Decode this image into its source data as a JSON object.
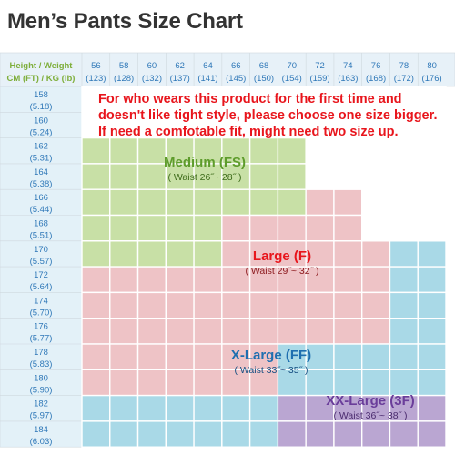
{
  "title": "Men’s Pants Size Chart",
  "header": {
    "line1": "Height / Weight",
    "line2": "CM (FT) / KG (lb)"
  },
  "weights": [
    {
      "kg": "56",
      "lb": "(123)"
    },
    {
      "kg": "58",
      "lb": "(128)"
    },
    {
      "kg": "60",
      "lb": "(132)"
    },
    {
      "kg": "62",
      "lb": "(137)"
    },
    {
      "kg": "64",
      "lb": "(141)"
    },
    {
      "kg": "66",
      "lb": "(145)"
    },
    {
      "kg": "68",
      "lb": "(150)"
    },
    {
      "kg": "70",
      "lb": "(154)"
    },
    {
      "kg": "72",
      "lb": "(159)"
    },
    {
      "kg": "74",
      "lb": "(163)"
    },
    {
      "kg": "76",
      "lb": "(168)"
    },
    {
      "kg": "78",
      "lb": "(172)"
    },
    {
      "kg": "80",
      "lb": "(176)"
    }
  ],
  "heights": [
    {
      "cm": "158",
      "ft": "(5.18)"
    },
    {
      "cm": "160",
      "ft": "(5.24)"
    },
    {
      "cm": "162",
      "ft": "(5.31)"
    },
    {
      "cm": "164",
      "ft": "(5.38)"
    },
    {
      "cm": "166",
      "ft": "(5.44)"
    },
    {
      "cm": "168",
      "ft": "(5.51)"
    },
    {
      "cm": "170",
      "ft": "(5.57)"
    },
    {
      "cm": "172",
      "ft": "(5.64)"
    },
    {
      "cm": "174",
      "ft": "(5.70)"
    },
    {
      "cm": "176",
      "ft": "(5.77)"
    },
    {
      "cm": "178",
      "ft": "(5.83)"
    },
    {
      "cm": "180",
      "ft": "(5.90)"
    },
    {
      "cm": "182",
      "ft": "(5.97)"
    },
    {
      "cm": "184",
      "ft": "(6.03)"
    }
  ],
  "grid": [
    "WWWWWWWWWWWWW",
    "WWWWWWWWWWWWW",
    "MMMMMMMMWWWWW",
    "MMMMMMMMWWWWW",
    "MMMMMMMMLLWWW",
    "MMMMMLLLLLWWW",
    "MMMMMLLLLLLXX",
    "LLLLLLLLLLLXX",
    "LLLLLLLLLLLXX",
    "LLLLLLLLLLLXX",
    "LLLLLLLXXXXXX",
    "LLLLLLLXXXXXX",
    "XXXXXXXPPPPPP",
    "XXXXXXXPPPPPP"
  ],
  "note": {
    "line1": "For who wears this product for the first time and",
    "line2": "doesn't like tight style, please choose one size bigger.",
    "line3": "If need a comfotable fit, might need two size up."
  },
  "zones": {
    "medium": {
      "name": "Medium (FS)",
      "waist": "( Waist 26˝~ 28˝ )"
    },
    "large": {
      "name": "Large (F)",
      "waist": "( Waist 29˝~ 32˝ )"
    },
    "xlarge": {
      "name": "X-Large (FF)",
      "waist": "( Waist 33˝~ 35˝ )"
    },
    "xxlarge": {
      "name": "XX-Large (3F)",
      "waist": "( Waist 36˝~ 38˝ )"
    }
  },
  "colors": {
    "header_text": "#7eae3a",
    "weight_text": "#2f78b8",
    "height_text": "#2f78b8",
    "header_bg": "#e7f1f8",
    "height_bg": "#e3f1f8",
    "empty": "#ffffff",
    "medium": "#c8e0a6",
    "large": "#eec3c6",
    "xlarge": "#a9d9e7",
    "xxlarge": "#baa6d2",
    "medium_text": "#5e9c2c",
    "large_text": "#e8151c",
    "xlarge_text": "#1f6fb0",
    "xxlarge_text": "#6a3d9a",
    "border": "#cfd8de"
  }
}
